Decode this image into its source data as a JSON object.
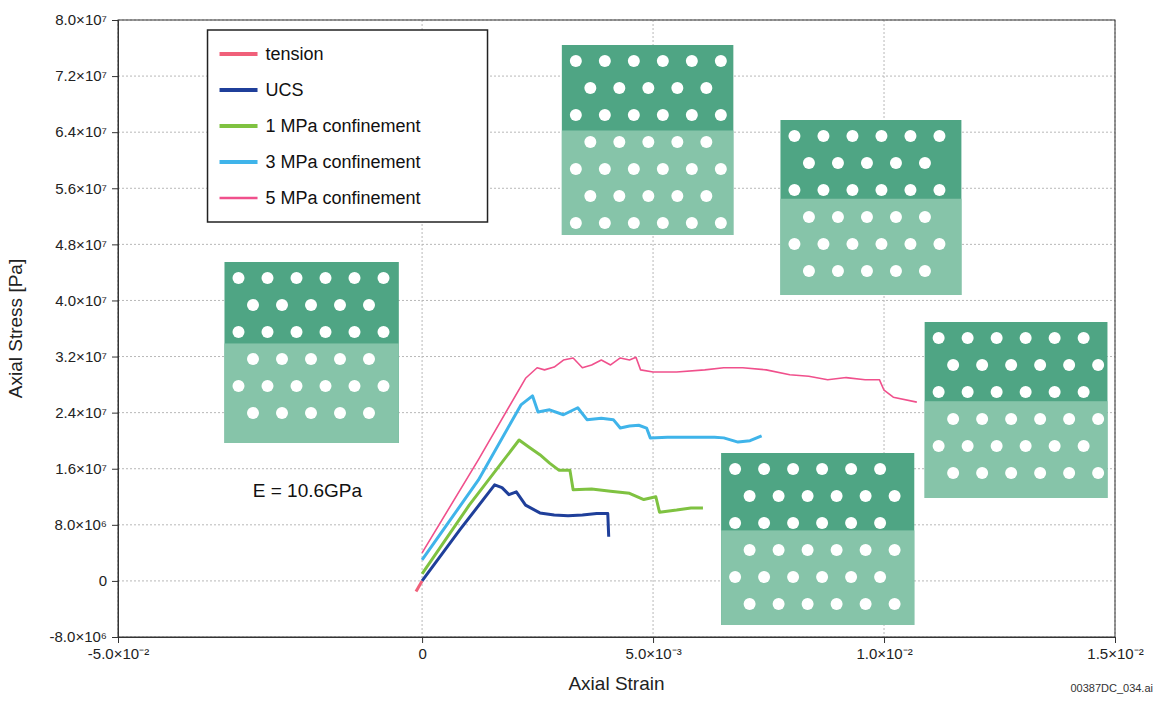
{
  "chart_data": {
    "type": "line",
    "x_label": "Axial Strain",
    "y_label": "Axial Stress [Pa]",
    "annotations": [
      "E = 10.6GPa",
      "00387DC_034.ai"
    ],
    "xlim": [
      -0.05,
      0.015
    ],
    "xticks": [
      {
        "value": -0.05,
        "label": "-5.0×10⁻²"
      },
      0,
      {
        "value": 0.005,
        "label": "5.0×10⁻³"
      },
      {
        "value": 0.01,
        "label": "1.0×10⁻²"
      },
      {
        "value": 0.015,
        "label": "1.5×10⁻²"
      }
    ],
    "ylim": [
      -8000000,
      80000000
    ],
    "yticks": [
      {
        "value": -8000000,
        "label": "-8.0×10⁶"
      },
      0,
      {
        "value": 8000000,
        "label": "8.0×10⁶"
      },
      {
        "value": 16000000,
        "label": "1.6×10⁷"
      },
      {
        "value": 24000000,
        "label": "2.4×10⁷"
      },
      {
        "value": 32000000,
        "label": "3.2×10⁷"
      },
      {
        "value": 40000000,
        "label": "4.0×10⁷"
      },
      {
        "value": 48000000,
        "label": "4.8×10⁷"
      },
      {
        "value": 56000000,
        "label": "5.6×10⁷"
      },
      {
        "value": 64000000,
        "label": "6.4×10⁷"
      },
      {
        "value": 72000000,
        "label": "7.2×10⁷"
      },
      {
        "value": 80000000,
        "label": "8.0×10⁷"
      }
    ],
    "grid": true,
    "legend": "upper left",
    "series": [
      {
        "name": "tension",
        "color": "#f0607a",
        "x": [
          -0.001,
          0
        ],
        "values": [
          -1500000,
          0
        ]
      },
      {
        "name": "UCS",
        "color": "#1f3f9a",
        "x": [
          0,
          0.00082,
          0.00157,
          0.00173,
          0.00188,
          0.00204,
          0.00224,
          0.00255,
          0.00286,
          0.00316,
          0.00347,
          0.00378,
          0.00402,
          0.00404
        ],
        "values": [
          0,
          7300000,
          13700000,
          13300000,
          12300000,
          12700000,
          10800000,
          9700000,
          9400000,
          9300000,
          9400000,
          9600000,
          9600000,
          6300000
        ]
      },
      {
        "name": "1 MPa confinement",
        "color": "#7fc241",
        "x": [
          0,
          0.00102,
          0.0021,
          0.00231,
          0.00255,
          0.00276,
          0.00296,
          0.0032,
          0.00327,
          0.00367,
          0.00408,
          0.00449,
          0.0048,
          0.00506,
          0.00514,
          0.00551,
          0.00582,
          0.00608
        ],
        "values": [
          1000000,
          10800000,
          20100000,
          19100000,
          18000000,
          16800000,
          15800000,
          15800000,
          13000000,
          13100000,
          12800000,
          12500000,
          11600000,
          12000000,
          9800000,
          10100000,
          10400000,
          10400000
        ]
      },
      {
        "name": "3 MPa confinement",
        "color": "#3fb4ea",
        "x": [
          0,
          0.00122,
          0.00214,
          0.00239,
          0.00251,
          0.00276,
          0.00306,
          0.00337,
          0.00357,
          0.00388,
          0.00414,
          0.00429,
          0.00449,
          0.00469,
          0.00486,
          0.00494,
          0.00531,
          0.00571,
          0.00602,
          0.00633,
          0.00653,
          0.00684,
          0.0071,
          0.00735
        ],
        "values": [
          3000000,
          14400000,
          25100000,
          26400000,
          24100000,
          24400000,
          23700000,
          24700000,
          23000000,
          23200000,
          23000000,
          21800000,
          22100000,
          22200000,
          21800000,
          20400000,
          20500000,
          20500000,
          20500000,
          20500000,
          20400000,
          19800000,
          20000000,
          20700000
        ]
      },
      {
        "name": "5 MPa confinement",
        "color": "#f0508c",
        "x": [
          0,
          0.00122,
          0.00224,
          0.00249,
          0.00265,
          0.00286,
          0.00306,
          0.00327,
          0.00347,
          0.00367,
          0.00388,
          0.00408,
          0.00429,
          0.00449,
          0.00463,
          0.00473,
          0.005,
          0.00551,
          0.00612,
          0.00653,
          0.00694,
          0.00745,
          0.00796,
          0.00837,
          0.00878,
          0.00918,
          0.00959,
          0.0099,
          0.01,
          0.0102,
          0.01071
        ],
        "values": [
          4000000,
          17300000,
          28900000,
          30400000,
          30100000,
          30500000,
          31500000,
          31800000,
          30400000,
          30800000,
          31500000,
          30800000,
          31800000,
          31500000,
          31900000,
          30100000,
          29800000,
          29800000,
          30100000,
          30400000,
          30400000,
          30100000,
          29400000,
          29200000,
          28700000,
          29000000,
          28700000,
          28700000,
          27200000,
          26200000,
          25500000
        ]
      }
    ]
  }
}
